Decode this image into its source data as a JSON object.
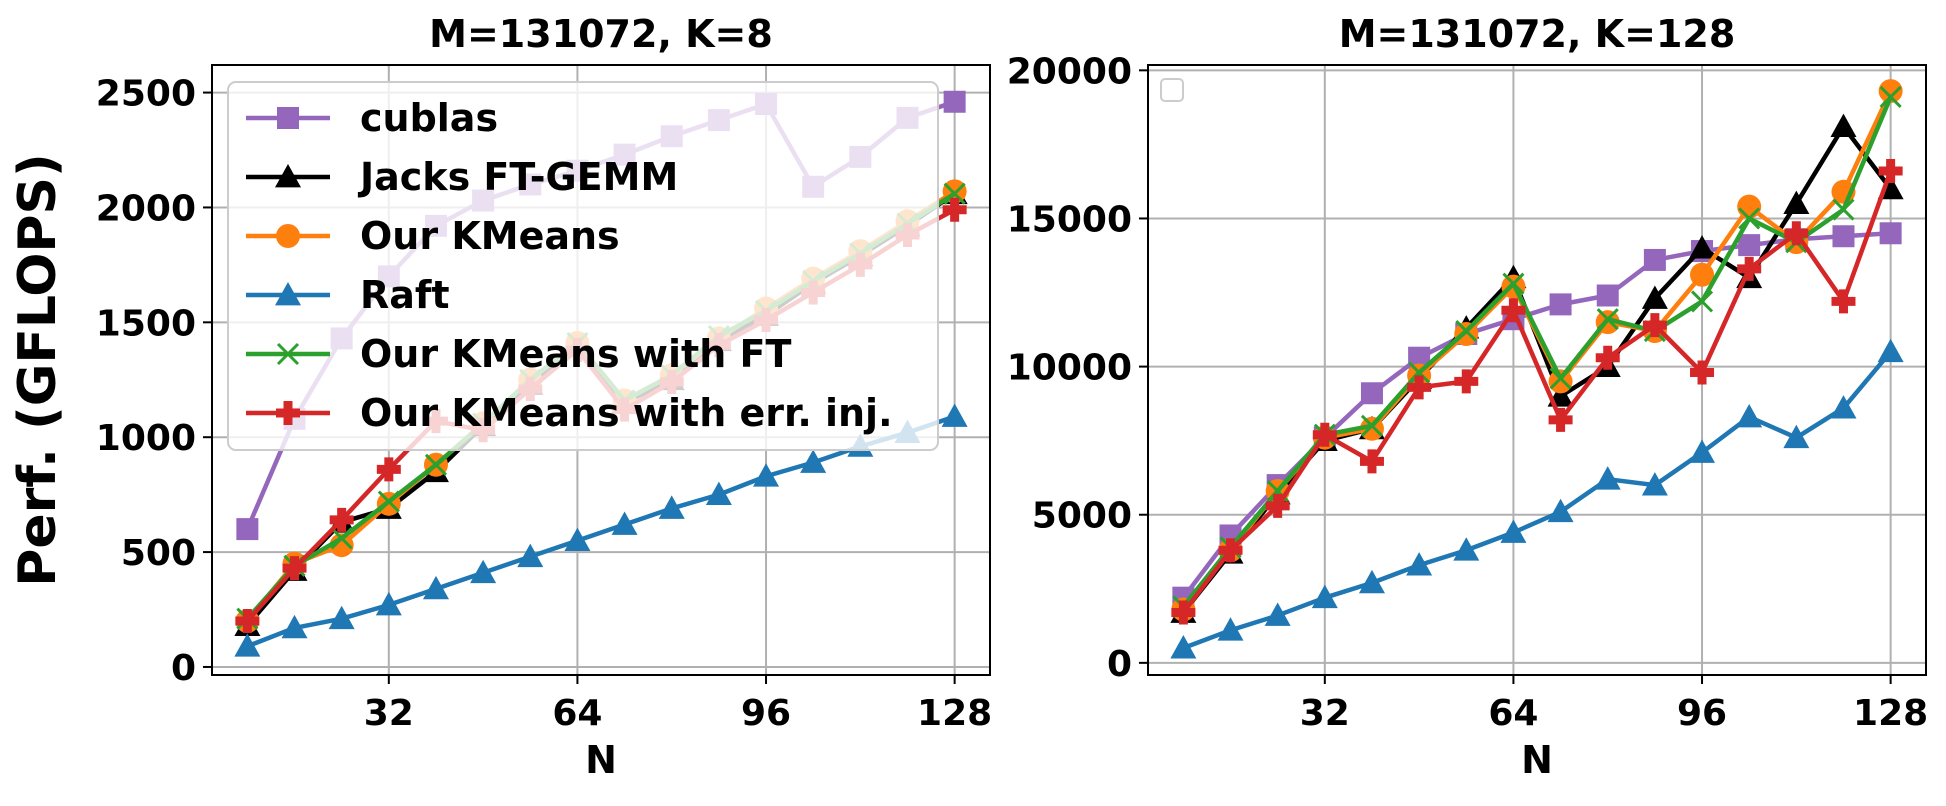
{
  "ylabel": "Perf. (GFLOPS)",
  "colors": {
    "cublas": "#9467bd",
    "jacks": "#000000",
    "ourkmeans": "#ff7f0e",
    "raft": "#1f77b4",
    "ourft": "#2ca02c",
    "errinj": "#d62728",
    "grid": "#b0b0b0"
  },
  "chart_data": [
    {
      "type": "line",
      "title": "M=131072, K=8",
      "xlabel": "N",
      "ylabel": "Perf. (GFLOPS)",
      "xlim": [
        2,
        134
      ],
      "ylim": [
        -35,
        2620
      ],
      "xticks": [
        32,
        64,
        96,
        128
      ],
      "yticks": [
        0,
        500,
        1000,
        1500,
        2000,
        2500
      ],
      "grid": true,
      "legend_position": "upper-left",
      "x": [
        8,
        16,
        24,
        32,
        40,
        48,
        56,
        64,
        72,
        80,
        88,
        96,
        104,
        112,
        120,
        128
      ],
      "series": [
        {
          "name": "cublas",
          "color_key": "cublas",
          "marker": "square",
          "values": [
            600,
            1080,
            1430,
            1700,
            1920,
            2030,
            2100,
            2160,
            2230,
            2310,
            2380,
            2450,
            2090,
            2220,
            2390,
            2460
          ]
        },
        {
          "name": "Jacks FT-GEMM",
          "color_key": "jacks",
          "marker": "triangle",
          "values": [
            180,
            420,
            630,
            690,
            850,
            1050,
            1230,
            1400,
            1150,
            1250,
            1420,
            1530,
            1670,
            1790,
            1920,
            2060
          ]
        },
        {
          "name": "Our KMeans",
          "color_key": "ourkmeans",
          "marker": "circle",
          "values": [
            200,
            450,
            530,
            710,
            880,
            1060,
            1250,
            1410,
            1160,
            1270,
            1430,
            1560,
            1690,
            1810,
            1940,
            2070
          ]
        },
        {
          "name": "Raft",
          "color_key": "raft",
          "marker": "triangle",
          "values": [
            90,
            170,
            210,
            270,
            340,
            410,
            480,
            550,
            620,
            690,
            750,
            830,
            890,
            960,
            1020,
            1090
          ]
        },
        {
          "name": "Our KMeans with FT",
          "color_key": "ourft",
          "marker": "x",
          "values": [
            210,
            440,
            560,
            720,
            880,
            1060,
            1250,
            1410,
            1160,
            1270,
            1440,
            1550,
            1680,
            1800,
            1930,
            2060
          ]
        },
        {
          "name": "Our KMeans with err. inj.",
          "color_key": "errinj",
          "marker": "plus",
          "values": [
            200,
            430,
            640,
            860,
            1070,
            1030,
            1210,
            1380,
            1120,
            1240,
            1400,
            1510,
            1630,
            1750,
            1880,
            1990
          ]
        }
      ]
    },
    {
      "type": "line",
      "title": "M=131072, K=128",
      "xlabel": "N",
      "ylabel": "",
      "xlim": [
        2,
        134
      ],
      "ylim": [
        -410,
        20180
      ],
      "xticks": [
        32,
        64,
        96,
        128
      ],
      "yticks": [
        0,
        5000,
        10000,
        15000,
        20000
      ],
      "grid": true,
      "legend_position": "upper-left",
      "x": [
        8,
        16,
        24,
        32,
        40,
        48,
        56,
        64,
        72,
        80,
        88,
        96,
        104,
        112,
        120,
        128
      ],
      "series": [
        {
          "name": "cublas",
          "color_key": "cublas",
          "marker": "square",
          "values": [
            2200,
            4300,
            6000,
            7600,
            9100,
            10300,
            11100,
            11600,
            12100,
            12400,
            13600,
            13900,
            14100,
            14300,
            14400,
            14500
          ]
        },
        {
          "name": "Jacks FT-GEMM",
          "color_key": "jacks",
          "marker": "triangle",
          "values": [
            1700,
            3700,
            5700,
            7500,
            7900,
            9600,
            11300,
            13000,
            9000,
            10000,
            12300,
            14000,
            13000,
            15500,
            18100,
            16000
          ]
        },
        {
          "name": "Our KMeans",
          "color_key": "ourkmeans",
          "marker": "circle",
          "values": [
            1800,
            3800,
            5800,
            7600,
            7900,
            9700,
            11100,
            12700,
            9500,
            11500,
            11200,
            13100,
            15400,
            14200,
            15900,
            19300
          ]
        },
        {
          "name": "Raft",
          "color_key": "raft",
          "marker": "triangle",
          "values": [
            500,
            1100,
            1600,
            2200,
            2700,
            3300,
            3800,
            4400,
            5100,
            6200,
            6000,
            7100,
            8300,
            7600,
            8600,
            10500
          ]
        },
        {
          "name": "Our KMeans with FT",
          "color_key": "ourft",
          "marker": "x",
          "values": [
            1900,
            3900,
            5800,
            7700,
            8000,
            9800,
            11200,
            12800,
            9600,
            11600,
            11200,
            12200,
            15000,
            14200,
            15300,
            19100
          ]
        },
        {
          "name": "Our KMeans with err. inj.",
          "color_key": "errinj",
          "marker": "plus",
          "values": [
            1700,
            3800,
            5300,
            7700,
            6800,
            9300,
            9500,
            11900,
            8200,
            10300,
            11400,
            9800,
            13300,
            14500,
            12200,
            16600
          ]
        }
      ]
    }
  ]
}
